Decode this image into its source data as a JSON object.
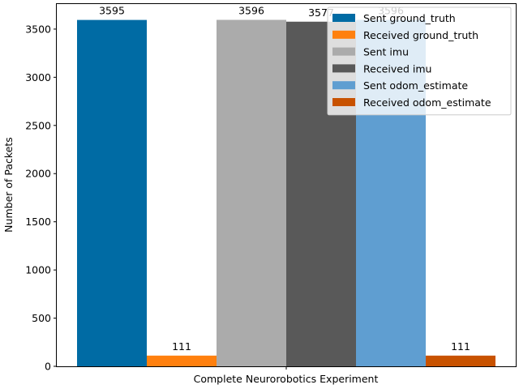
{
  "chart_data": {
    "type": "bar",
    "categories": [
      "Complete Neurorobotics Experiment"
    ],
    "xlabel": "Complete Neurorobotics Experiment",
    "ylabel": "Number of Packets",
    "ylim": [
      0,
      3760
    ],
    "yticks": [
      0,
      500,
      1000,
      1500,
      2000,
      2500,
      3000,
      3500
    ],
    "grid": false,
    "legend_position": "top-right",
    "series": [
      {
        "name": "Sent ground_truth",
        "values": [
          3595
        ],
        "color": "#006ba4",
        "label": "3595"
      },
      {
        "name": "Received ground_truth",
        "values": [
          111
        ],
        "color": "#ff800e",
        "label": "111"
      },
      {
        "name": "Sent imu",
        "values": [
          3596
        ],
        "color": "#ababab",
        "label": "3596"
      },
      {
        "name": "Received imu",
        "values": [
          3577
        ],
        "color": "#595959",
        "label": "3577"
      },
      {
        "name": "Sent odom_estimate",
        "values": [
          3596
        ],
        "color": "#5f9ed1",
        "label": "3596"
      },
      {
        "name": "Received odom_estimate",
        "values": [
          111
        ],
        "color": "#c85200",
        "label": "111"
      }
    ]
  }
}
